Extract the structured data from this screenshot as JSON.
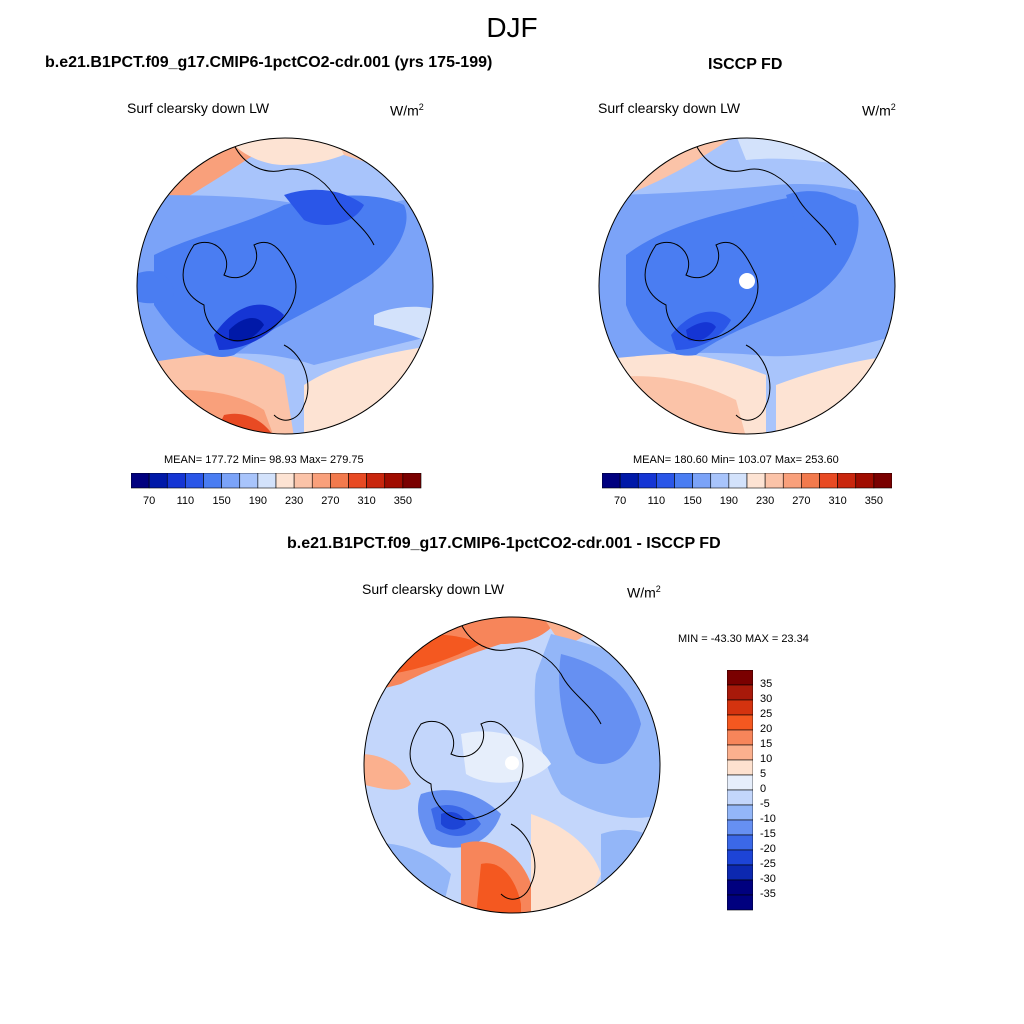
{
  "title": "DJF",
  "panels": [
    {
      "name": "model",
      "title": "b.e21.B1PCT.f09_g17.CMIP6-1pctCO2-cdr.001 (yrs 175-199)",
      "variable": "Surf clearsky down LW",
      "units": "W/m",
      "units_sup": "2",
      "stats": "MEAN= 177.72  Min=  98.93  Max= 279.75",
      "colorbar_ticks": [
        "70",
        "110",
        "150",
        "190",
        "230",
        "270",
        "310",
        "350"
      ]
    },
    {
      "name": "obs",
      "title": "ISCCP FD",
      "variable": "Surf clearsky down LW",
      "units": "W/m",
      "units_sup": "2",
      "stats": "MEAN= 180.60  Min= 103.07  Max= 253.60",
      "colorbar_ticks": [
        "70",
        "110",
        "150",
        "190",
        "230",
        "270",
        "310",
        "350"
      ]
    },
    {
      "name": "diff",
      "title": "b.e21.B1PCT.f09_g17.CMIP6-1pctCO2-cdr.001 - ISCCP FD",
      "variable": "Surf clearsky down LW",
      "units": "W/m",
      "units_sup": "2",
      "stats": "MIN = -43.30 MAX =  23.34",
      "colorbar_ticks": [
        "35",
        "30",
        "25",
        "20",
        "15",
        "10",
        "5",
        "0",
        "-5",
        "-10",
        "-15",
        "-20",
        "-25",
        "-30",
        "-35"
      ]
    }
  ],
  "colors": {
    "abs_scale": [
      "#00007f",
      "#0019a8",
      "#1535d4",
      "#2a56e8",
      "#4a7df2",
      "#7ba3f8",
      "#a8c4fb",
      "#d3e2fb",
      "#fde3d3",
      "#fbc3a8",
      "#f9a07b",
      "#f27a4d",
      "#e84a23",
      "#c9260d",
      "#a00c00",
      "#7a0000"
    ],
    "diff_scale": [
      "#7a0000",
      "#a8190a",
      "#d4330f",
      "#f45820",
      "#f7855a",
      "#fbb08e",
      "#fde1cf",
      "#e6eefb",
      "#c3d6fb",
      "#93b6f8",
      "#6690f2",
      "#3b68e8",
      "#1d44d6",
      "#0c28b0",
      "#00007f"
    ]
  }
}
